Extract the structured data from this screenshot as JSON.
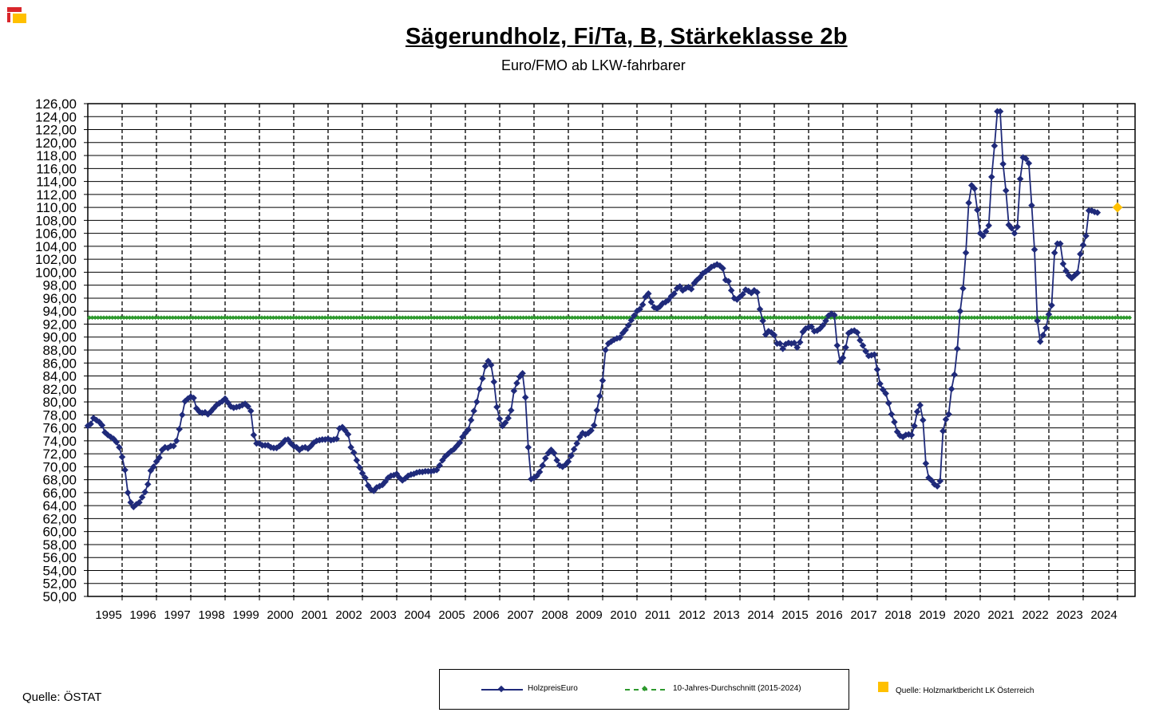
{
  "title": "Sägerundholz, Fi/Ta, B, Stärkeklasse 2b",
  "subtitle": "Euro/FMO ab LKW-fahrbarer",
  "source": "Quelle:  ÖSTAT",
  "legend": {
    "series1": "HolzpreisEuro",
    "series2": "10-Jahres-Durchschnitt (2015-2024)",
    "external": "Quelle: Holzmarktbericht LK Österreich"
  },
  "colors": {
    "price": "#1f2a7a",
    "average": "#2e9a2e",
    "latest": "#ffc000",
    "grid": "#000000"
  },
  "chart_data": {
    "type": "line",
    "title": "Sägerundholz, Fi/Ta, B, Stärkeklasse 2b",
    "subtitle": "Euro/FMO ab LKW-fahrbarer",
    "ylim": [
      50,
      126
    ],
    "ytick_step": 2,
    "yticks": [
      "126,00",
      "124,00",
      "122,00",
      "120,00",
      "118,00",
      "116,00",
      "114,00",
      "112,00",
      "110,00",
      "108,00",
      "106,00",
      "104,00",
      "102,00",
      "100,00",
      "98,00",
      "96,00",
      "94,00",
      "92,00",
      "90,00",
      "88,00",
      "86,00",
      "84,00",
      "82,00",
      "80,00",
      "78,00",
      "76,00",
      "74,00",
      "72,00",
      "70,00",
      "68,00",
      "66,00",
      "64,00",
      "62,00",
      "60,00",
      "58,00",
      "56,00",
      "54,00",
      "52,00",
      "50,00"
    ],
    "xticks": [
      "1995",
      "1996",
      "1997",
      "1998",
      "1999",
      "2000",
      "2001",
      "2002",
      "2003",
      "2004",
      "2005",
      "2006",
      "2007",
      "2008",
      "2009",
      "2010",
      "2011",
      "2012",
      "2013",
      "2014",
      "2015",
      "2016",
      "2017",
      "2018",
      "2019",
      "2020",
      "2021",
      "2022",
      "2023",
      "2024"
    ],
    "grid": true,
    "legend_position": "bottom",
    "series": [
      {
        "name": "HolzpreisEuro",
        "x_start": 1995.0,
        "x_step": 0.08333,
        "values": [
          76.3,
          76.6,
          77.5,
          77.2,
          76.9,
          76.4,
          75.3,
          74.9,
          74.6,
          74.3,
          73.8,
          73.0,
          71.5,
          69.5,
          66.0,
          64.5,
          63.8,
          64.2,
          64.5,
          65.3,
          66.1,
          67.3,
          69.4,
          70.0,
          70.8,
          71.4,
          72.6,
          73.0,
          72.9,
          73.2,
          73.2,
          74.0,
          75.8,
          78.0,
          80.1,
          80.5,
          80.8,
          80.6,
          79.0,
          78.5,
          78.3,
          78.4,
          78.1,
          78.5,
          79.0,
          79.5,
          79.8,
          80.1,
          80.5,
          79.9,
          79.3,
          79.1,
          79.2,
          79.3,
          79.5,
          79.7,
          79.3,
          78.6,
          74.9,
          73.6,
          73.6,
          73.3,
          73.3,
          73.3,
          73.0,
          72.9,
          72.9,
          73.2,
          73.6,
          74.1,
          74.2,
          73.6,
          73.2,
          73.0,
          72.6,
          72.9,
          73.0,
          72.8,
          73.2,
          73.7,
          74.0,
          74.1,
          74.2,
          74.2,
          74.3,
          74.1,
          74.2,
          74.3,
          75.9,
          76.1,
          75.6,
          75.0,
          73.0,
          72.2,
          71.0,
          69.9,
          69.0,
          68.3,
          67.1,
          66.5,
          66.3,
          66.8,
          67.0,
          67.2,
          67.7,
          68.3,
          68.6,
          68.7,
          68.9,
          68.3,
          67.9,
          68.2,
          68.6,
          68.8,
          68.9,
          69.1,
          69.2,
          69.2,
          69.3,
          69.3,
          69.3,
          69.4,
          69.5,
          70.2,
          71.0,
          71.6,
          72.0,
          72.4,
          72.7,
          73.2,
          73.7,
          74.6,
          75.2,
          75.7,
          77.2,
          78.6,
          80.0,
          82.0,
          83.6,
          85.5,
          86.3,
          85.7,
          83.1,
          79.2,
          77.4,
          76.3,
          76.8,
          77.5,
          78.7,
          81.7,
          82.9,
          83.9,
          84.4,
          80.7,
          73.0,
          68.1,
          68.3,
          68.6,
          69.2,
          70.2,
          71.3,
          72.1,
          72.6,
          72.1,
          71.0,
          70.2,
          70.0,
          70.3,
          70.8,
          71.7,
          72.7,
          73.6,
          74.6,
          75.2,
          75.0,
          75.2,
          75.6,
          76.4,
          78.7,
          80.9,
          83.3,
          88.0,
          89.0,
          89.3,
          89.6,
          89.8,
          89.9,
          90.6,
          91.1,
          91.8,
          92.6,
          93.3,
          94.0,
          94.3,
          95.0,
          96.2,
          96.7,
          95.4,
          94.6,
          94.4,
          94.7,
          95.2,
          95.4,
          95.7,
          96.3,
          96.7,
          97.5,
          97.8,
          97.2,
          97.5,
          97.7,
          97.4,
          98.3,
          98.8,
          99.2,
          99.8,
          100.1,
          100.4,
          100.8,
          101.0,
          101.2,
          101.0,
          100.6,
          98.8,
          98.6,
          97.2,
          96.0,
          95.8,
          96.2,
          96.6,
          97.3,
          97.1,
          96.8,
          97.2,
          96.9,
          94.3,
          92.5,
          90.4,
          90.9,
          90.7,
          90.3,
          89.0,
          89.0,
          88.2,
          88.9,
          89.1,
          89.0,
          89.1,
          88.4,
          89.2,
          90.8,
          91.3,
          91.5,
          91.6,
          90.9,
          91.0,
          91.3,
          91.8,
          92.5,
          93.3,
          93.6,
          93.4,
          88.7,
          86.2,
          86.8,
          88.4,
          90.6,
          90.9,
          91.0,
          90.7,
          89.5,
          88.7,
          87.8,
          87.1,
          87.2,
          87.3,
          85.0,
          82.8,
          81.9,
          81.3,
          79.8,
          78.1,
          76.9,
          75.4,
          74.8,
          74.6,
          74.9,
          75.0,
          74.9,
          76.3,
          78.5,
          79.5,
          77.2,
          70.5,
          68.3,
          67.9,
          67.3,
          67.0,
          67.8,
          75.5,
          77.3,
          78.1,
          82.0,
          84.2,
          88.2,
          94.0,
          97.5,
          103.0,
          110.7,
          113.4,
          112.9,
          109.6,
          106.0,
          105.6,
          106.3,
          107.2,
          114.7,
          119.5,
          124.8,
          124.8,
          116.7,
          112.6,
          107.3,
          106.8,
          106.0,
          107.0,
          114.4,
          117.7,
          117.5,
          116.8,
          110.3,
          103.5,
          92.5,
          89.3,
          90.3,
          91.4,
          93.5,
          94.9,
          103.0,
          104.4,
          104.4,
          101.3,
          100.2,
          99.5,
          99.1,
          99.5,
          99.9,
          102.8,
          104.2,
          105.6,
          109.5,
          109.5,
          109.3,
          109.2
        ]
      },
      {
        "name": "10-Jahres-Durchschnitt (2015-2024)",
        "value": 93.0
      },
      {
        "name": "Quelle: Holzmarktbericht LK Österreich",
        "points": [
          {
            "x": 2024.5,
            "y": 110.0
          }
        ]
      }
    ]
  }
}
